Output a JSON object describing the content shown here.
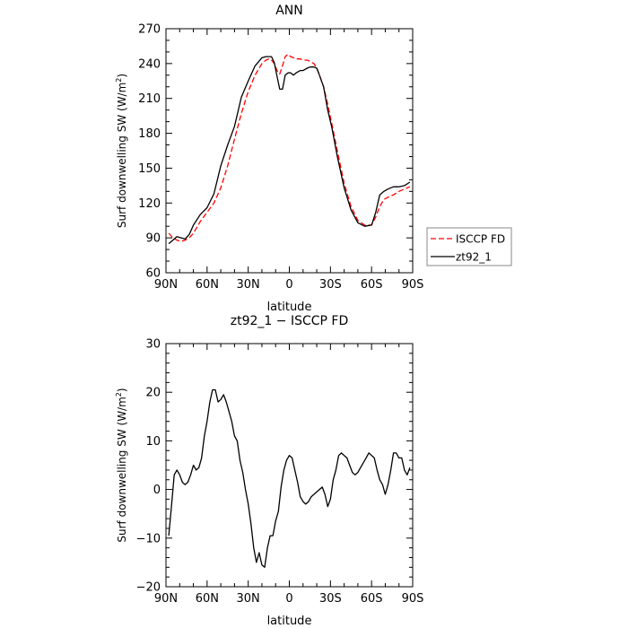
{
  "chart_data": [
    {
      "type": "line",
      "title": "ANN",
      "xlabel": "latitude",
      "ylabel": "Surf downwelling SW (W/m²)",
      "ylabel_main": "Surf downwelling SW  (W/m",
      "ylabel_sup": "2",
      "ylabel_end": ")",
      "xlim": [
        90,
        -90
      ],
      "ylim": [
        60,
        270
      ],
      "x_ticks": [
        90,
        60,
        30,
        0,
        -30,
        -60,
        -90
      ],
      "x_tick_labels": [
        "90N",
        "60N",
        "30N",
        "0",
        "30S",
        "60S",
        "90S"
      ],
      "y_ticks": [
        60,
        90,
        120,
        150,
        180,
        210,
        240,
        270
      ],
      "y_tick_labels": [
        "60",
        "90",
        "120",
        "150",
        "180",
        "210",
        "240",
        "270"
      ],
      "legend": {
        "placement": "right",
        "entries": [
          "ISCCP FD",
          "zt92_1"
        ]
      },
      "series": [
        {
          "name": "ISCCP FD",
          "color": "#ff0000",
          "style": "dashed",
          "x": [
            88,
            85,
            82,
            79,
            76,
            73,
            70,
            65,
            60,
            55,
            50,
            45,
            40,
            35,
            30,
            25,
            20,
            17,
            15,
            13,
            11,
            9,
            7,
            5,
            3,
            1,
            -1,
            -3,
            -5,
            -8,
            -10,
            -13,
            -15,
            -18,
            -20,
            -22,
            -25,
            -28,
            -31,
            -35,
            -40,
            -45,
            -50,
            -55,
            -60,
            -63,
            -66,
            -69,
            -72,
            -76,
            -80,
            -84,
            -88
          ],
          "y": [
            94,
            90,
            88,
            87,
            88,
            90,
            94,
            104,
            112,
            120,
            133,
            152,
            175,
            197,
            216,
            230,
            240,
            243,
            244,
            243,
            240,
            234,
            231,
            238,
            246,
            248,
            246,
            245,
            244,
            244,
            243,
            243,
            242,
            240,
            236,
            230,
            220,
            205,
            188,
            165,
            137,
            117,
            105,
            101,
            101,
            108,
            117,
            123,
            125,
            127,
            130,
            132,
            134
          ]
        },
        {
          "name": "zt92_1",
          "color": "#000000",
          "style": "solid",
          "x": [
            88,
            85,
            82,
            79,
            76,
            73,
            70,
            65,
            60,
            55,
            50,
            45,
            40,
            35,
            30,
            25,
            20,
            17,
            15,
            13,
            11,
            9,
            7,
            5,
            3,
            1,
            -1,
            -3,
            -5,
            -8,
            -10,
            -13,
            -15,
            -18,
            -20,
            -22,
            -25,
            -28,
            -31,
            -35,
            -40,
            -45,
            -50,
            -55,
            -60,
            -63,
            -66,
            -69,
            -72,
            -76,
            -80,
            -84,
            -88
          ],
          "y": [
            85,
            88,
            91,
            90,
            89,
            93,
            101,
            110,
            116,
            128,
            152,
            170,
            186,
            211,
            225,
            238,
            245,
            246,
            246,
            246,
            241,
            229,
            218,
            218,
            230,
            232,
            232,
            230,
            232,
            234,
            234,
            236,
            237,
            237,
            236,
            230,
            220,
            200,
            185,
            160,
            133,
            114,
            103,
            100,
            101,
            112,
            127,
            130,
            132,
            134,
            134,
            135,
            138
          ]
        }
      ]
    },
    {
      "type": "line",
      "title": "zt92_1 − ISCCP FD",
      "xlabel": "latitude",
      "ylabel": "Surf downwelling SW (W/m²)",
      "ylabel_main": "Surf downwelling SW  (W/m",
      "ylabel_sup": "2",
      "ylabel_end": ")",
      "xlim": [
        90,
        -90
      ],
      "ylim": [
        -20,
        30
      ],
      "x_ticks": [
        90,
        60,
        30,
        0,
        -30,
        -60,
        -90
      ],
      "x_tick_labels": [
        "90N",
        "60N",
        "30N",
        "0",
        "30S",
        "60S",
        "90S"
      ],
      "y_ticks": [
        -20,
        -10,
        0,
        10,
        20,
        30
      ],
      "y_tick_labels": [
        "−20",
        "−10",
        "0",
        "10",
        "20",
        "30"
      ],
      "series": [
        {
          "color": "#000000",
          "style": "solid",
          "x": [
            88,
            86,
            84,
            82,
            80,
            78,
            76,
            74,
            72,
            70,
            68,
            66,
            64,
            62,
            60,
            58,
            56,
            54,
            52,
            50,
            48,
            46,
            44,
            42,
            40,
            38,
            36,
            34,
            32,
            30,
            28,
            26,
            24,
            22,
            20,
            18,
            16,
            14,
            12,
            10,
            8,
            6,
            4,
            2,
            0,
            -2,
            -4,
            -6,
            -8,
            -10,
            -12,
            -14,
            -16,
            -18,
            -20,
            -22,
            -24,
            -26,
            -28,
            -30,
            -32,
            -34,
            -36,
            -38,
            -40,
            -42,
            -44,
            -46,
            -48,
            -50,
            -52,
            -54,
            -56,
            -58,
            -60,
            -62,
            -64,
            -66,
            -68,
            -70,
            -72,
            -74,
            -76,
            -78,
            -80,
            -82,
            -84,
            -86,
            -88
          ],
          "y": [
            -9.5,
            -3.5,
            3,
            4,
            3,
            1.5,
            1,
            1.5,
            3,
            5,
            4,
            4.5,
            6.5,
            11,
            14,
            18,
            20.5,
            20.5,
            18,
            18.5,
            19.5,
            18,
            16,
            14,
            11,
            10,
            6,
            3.5,
            0,
            -3,
            -7,
            -12,
            -15,
            -13,
            -15.5,
            -16,
            -12,
            -9.5,
            -9.5,
            -6.5,
            -4.5,
            0.5,
            4,
            6,
            7,
            6.5,
            4,
            1.5,
            -1.5,
            -2.5,
            -3,
            -2.5,
            -1.5,
            -1,
            -0.5,
            0,
            0.5,
            -1,
            -3.5,
            -2,
            2,
            4,
            7,
            7.5,
            7,
            6.5,
            5,
            3.5,
            3,
            3.5,
            4.5,
            5.5,
            6.5,
            7.5,
            7,
            6.5,
            4,
            2,
            1,
            -1,
            1,
            4,
            7.5,
            7.5,
            6.5,
            6.5,
            4,
            3,
            4.5
          ]
        }
      ]
    }
  ]
}
